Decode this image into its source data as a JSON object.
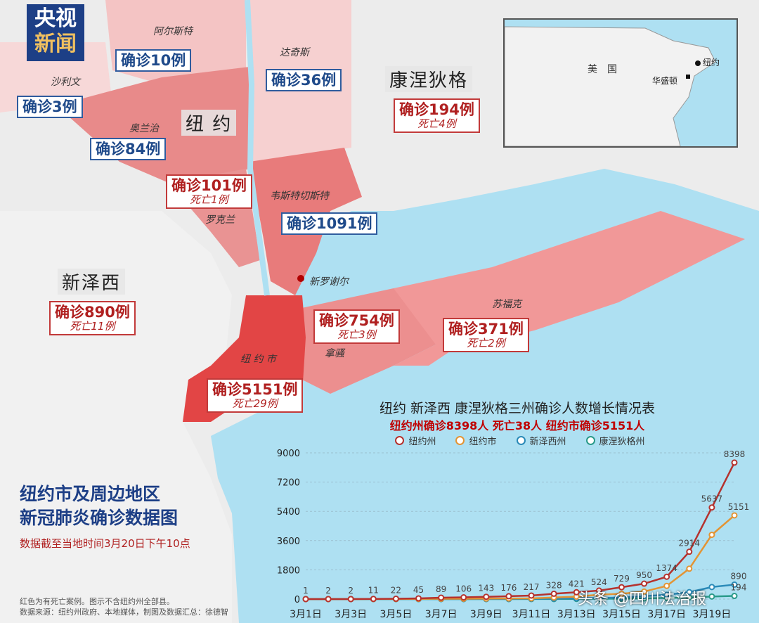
{
  "logo": {
    "line1": "央视",
    "line2": "新闻"
  },
  "states": {
    "ny": "纽 约",
    "nj": "新泽西",
    "ct": "康涅狄格"
  },
  "places": {
    "albany": "阿尔斯特",
    "sullivan": "沙利文",
    "dutchess": "达奇斯",
    "orange": "奥兰治",
    "westchester": "韦斯特切斯特",
    "rockland": "罗克兰",
    "new_rochelle": "新罗谢尔",
    "suffolk": "苏福克",
    "nassau": "拿骚",
    "nyc": "纽 约 市"
  },
  "counties": {
    "ulster": {
      "confirmed": "确诊10例"
    },
    "sullivan": {
      "confirmed": "确诊3例"
    },
    "dutchess": {
      "confirmed": "确诊36例"
    },
    "orange": {
      "confirmed": "确诊84例"
    },
    "rockland": {
      "confirmed": "确诊101例",
      "deaths": "死亡1例"
    },
    "westchester": {
      "confirmed": "确诊1091例"
    },
    "connecticut": {
      "confirmed": "确诊194例",
      "deaths": "死亡4例"
    },
    "new_jersey": {
      "confirmed": "确诊890例",
      "deaths": "死亡11例"
    },
    "nassau": {
      "confirmed": "确诊754例",
      "deaths": "死亡3例"
    },
    "suffolk": {
      "confirmed": "确诊371例",
      "deaths": "死亡2例"
    },
    "nyc": {
      "confirmed": "确诊5151例",
      "deaths": "死亡29例"
    }
  },
  "inset": {
    "usa": "美　国",
    "newyork": "纽约",
    "washington": "华盛顿"
  },
  "map_title": {
    "line1": "纽约市及周边地区",
    "line2": "新冠肺炎确诊数据图"
  },
  "map_note": "数据截至当地时间3月20日下午10点",
  "footer": {
    "line1": "红色为有死亡案例。图示不含纽约州全部县。",
    "line2": "数据来源：纽约州政府、本地媒体，制图及数据汇总：徐德智"
  },
  "watermark": "头条 @四川法治报",
  "colors": {
    "ny_state": "#b5322e",
    "nyc": "#e39434",
    "nj": "#2a8ab8",
    "ct": "#2a9a8a"
  },
  "chart_data": {
    "type": "line",
    "title": "纽约 新泽西 康涅狄格三州确诊人数增长情况表",
    "subtitle": "纽约州确诊8398人 死亡38人 纽约市确诊5151人",
    "x": [
      "3月1日",
      "3月2日",
      "3月3日",
      "3月4日",
      "3月5日",
      "3月6日",
      "3月7日",
      "3月8日",
      "3月9日",
      "3月10日",
      "3月11日",
      "3月12日",
      "3月13日",
      "3月14日",
      "3月15日",
      "3月16日",
      "3月17日",
      "3月18日",
      "3月19日",
      "3月20日"
    ],
    "x_tick_labels": [
      "3月1日",
      "3月3日",
      "3月5日",
      "3月7日",
      "3月9日",
      "3月11日",
      "3月13日",
      "3月15日",
      "3月17日",
      "3月19日"
    ],
    "y_ticks": [
      0,
      1800,
      3600,
      5400,
      7200,
      9000
    ],
    "ylim": [
      0,
      9000
    ],
    "series": [
      {
        "name": "纽约州",
        "values": [
          1,
          2,
          2,
          11,
          22,
          45,
          89,
          106,
          143,
          176,
          217,
          328,
          421,
          524,
          729,
          950,
          1374,
          2914,
          5637,
          8398
        ]
      },
      {
        "name": "纽约市",
        "values": [
          1,
          1,
          1,
          4,
          6,
          13,
          20,
          24,
          30,
          38,
          45,
          95,
          154,
          269,
          329,
          463,
          814,
          1871,
          3954,
          5151
        ]
      },
      {
        "name": "新泽西州",
        "values": [
          0,
          0,
          0,
          1,
          2,
          4,
          6,
          6,
          11,
          15,
          23,
          29,
          50,
          69,
          98,
          178,
          267,
          427,
          742,
          890
        ]
      },
      {
        "name": "康涅狄格州",
        "values": [
          0,
          0,
          0,
          0,
          0,
          0,
          0,
          1,
          1,
          2,
          3,
          5,
          11,
          20,
          26,
          41,
          68,
          96,
          159,
          194
        ]
      }
    ],
    "data_labels_series": "纽约州",
    "end_labels": {
      "纽约市": "5151",
      "新泽西州": "890",
      "康涅狄格州": "194"
    }
  }
}
